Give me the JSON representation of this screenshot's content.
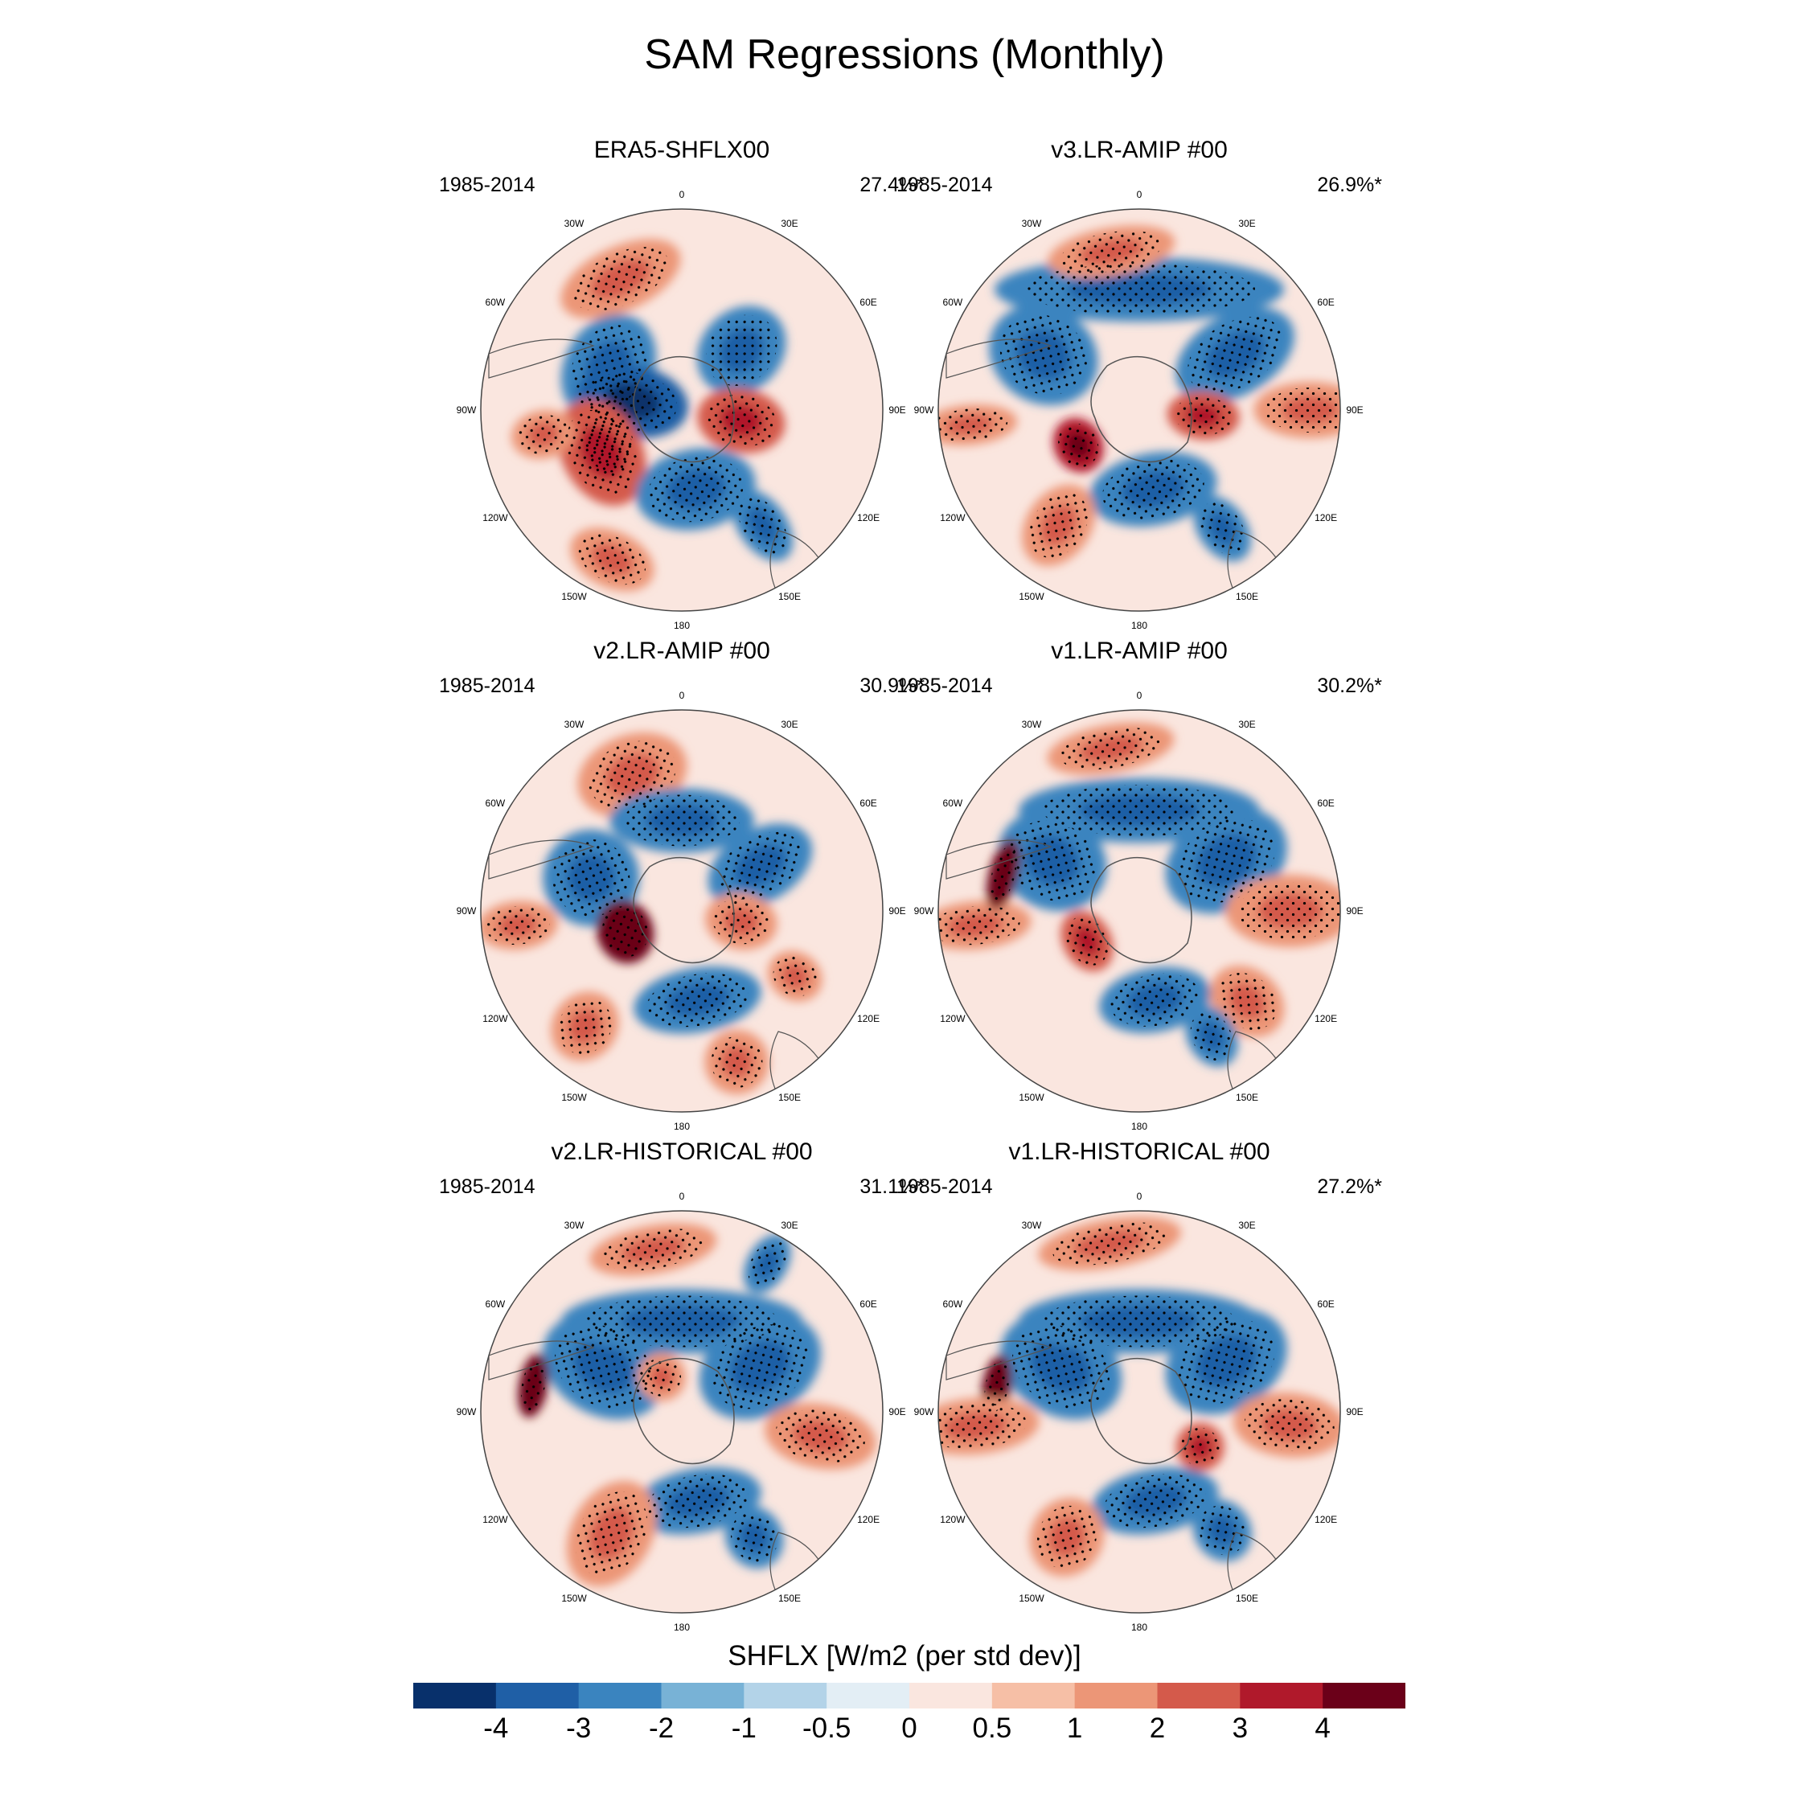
{
  "title": "SAM Regressions (Monthly)",
  "colorbar": {
    "label": "SHFLX [W/m2 (per std dev)]",
    "ticks": [
      "-4",
      "-3",
      "-2",
      "-1",
      "-0.5",
      "0",
      "0.5",
      "1",
      "2",
      "3",
      "4"
    ],
    "colors": [
      "#08306b",
      "#1f5fa6",
      "#3a84bf",
      "#78b2d6",
      "#b3d3e8",
      "#e3eef5",
      "#fae6df",
      "#f6bfa6",
      "#ec9677",
      "#d45a4b",
      "#b0192b",
      "#6b0019"
    ]
  },
  "lon_labels": [
    "0",
    "30E",
    "60E",
    "90E",
    "120E",
    "150E",
    "180",
    "150W",
    "120W",
    "90W",
    "60W",
    "30W"
  ],
  "panels": [
    {
      "title": "ERA5-SHFLX00",
      "period": "1985-2014",
      "percent": "27.4%*"
    },
    {
      "title": "v3.LR-AMIP  #00",
      "period": "1985-2014",
      "percent": "26.9%*"
    },
    {
      "title": "v2.LR-AMIP  #00",
      "period": "1985-2014",
      "percent": "30.9%*"
    },
    {
      "title": "v1.LR-AMIP  #00",
      "period": "1985-2014",
      "percent": "30.2%*"
    },
    {
      "title": "v2.LR-HISTORICAL  #00",
      "period": "1985-2014",
      "percent": "31.1%*"
    },
    {
      "title": "v1.LR-HISTORICAL  #00",
      "period": "1985-2014",
      "percent": "27.2%*"
    }
  ]
}
